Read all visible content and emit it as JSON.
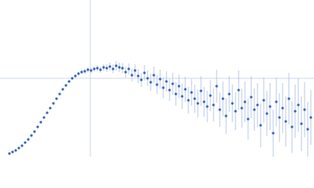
{
  "chart_data": {
    "type": "scatter",
    "x": [
      12,
      16,
      20,
      24,
      28,
      32,
      36,
      40,
      44,
      48,
      52,
      56,
      60,
      64,
      68,
      72,
      76,
      80,
      84,
      88,
      92,
      96,
      100,
      104,
      108,
      112,
      116,
      120,
      124,
      128,
      132,
      136,
      140,
      144,
      148,
      152,
      156,
      160,
      164,
      168,
      172,
      176,
      180,
      184,
      188,
      192,
      196,
      200,
      204,
      208,
      212,
      216,
      220,
      224,
      228,
      232,
      236,
      240,
      244,
      248,
      252,
      256,
      260,
      264,
      268,
      272,
      276,
      280,
      284,
      288,
      292,
      296,
      300,
      304,
      308,
      312,
      316,
      320,
      324,
      328,
      332,
      336,
      340,
      344,
      348,
      352,
      356,
      360,
      364,
      368,
      372,
      376,
      380,
      384,
      388,
      392,
      396
    ],
    "series": [
      {
        "color": "#3a66b8",
        "error_color": "#a9bde4",
        "values": [
          4,
          6,
          8,
          11,
          14,
          18,
          22,
          27,
          32,
          38,
          44,
          50,
          56,
          62,
          68,
          74,
          80,
          86,
          91,
          96,
          100,
          103,
          106,
          108,
          109,
          111,
          110,
          112,
          113,
          111,
          114,
          113,
          115,
          112,
          116,
          114,
          113,
          108,
          112,
          104,
          110,
          103,
          98,
          107,
          100,
          95,
          104,
          92,
          99,
          88,
          96,
          85,
          93,
          80,
          90,
          77,
          86,
          72,
          82,
          74,
          68,
          84,
          70,
          64,
          78,
          66,
          90,
          60,
          74,
          52,
          80,
          68,
          58,
          85,
          62,
          70,
          48,
          76,
          60,
          66,
          40,
          72,
          55,
          64,
          30,
          70,
          50,
          62,
          45,
          74,
          38,
          58,
          66,
          42,
          60,
          35,
          50
        ],
        "errors": [
          0.5,
          0.5,
          0.5,
          0.6,
          0.6,
          0.7,
          0.7,
          0.8,
          0.8,
          0.9,
          0.9,
          1,
          1,
          1.1,
          1.2,
          1.3,
          1.4,
          1.5,
          1.6,
          1.7,
          1.8,
          2,
          2.2,
          2.5,
          3,
          3,
          3.5,
          3.5,
          4,
          4,
          4.5,
          5,
          5,
          5.5,
          6,
          6,
          6.5,
          7,
          7,
          8,
          8,
          9,
          9,
          10,
          10,
          11,
          11,
          12,
          12,
          13,
          13,
          14,
          14,
          15,
          15,
          16,
          16,
          17,
          17,
          18,
          18,
          19,
          19,
          20,
          20,
          21,
          21,
          22,
          22,
          23,
          23,
          24,
          24,
          25,
          25,
          26,
          26,
          27,
          27,
          28,
          28,
          29,
          29,
          30,
          30,
          31,
          31,
          32,
          32,
          33,
          33,
          34,
          34,
          35,
          35,
          35,
          35
        ]
      }
    ],
    "xlim": [
      0,
      400
    ],
    "ylim": [
      0,
      200
    ]
  }
}
